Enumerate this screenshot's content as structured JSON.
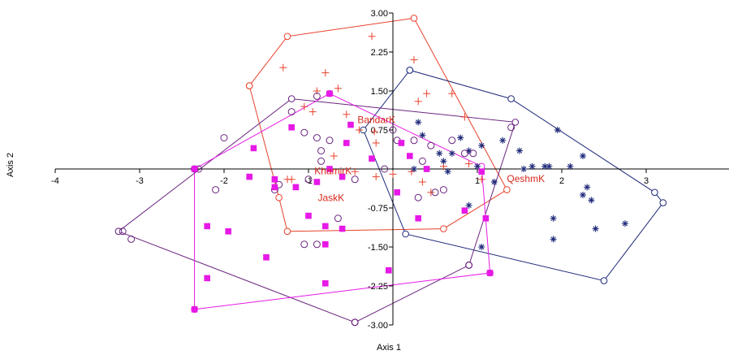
{
  "chart_data": {
    "type": "scatter",
    "xlabel": "Axis 1",
    "ylabel": "Axis 2",
    "xlim": [
      -4,
      3.3
    ],
    "ylim": [
      -3.0,
      3.0
    ],
    "x_ticks": [
      "-4",
      "-3",
      "-2",
      "-1",
      "1",
      "2",
      "3"
    ],
    "x_tick_values": [
      -4,
      -3,
      -2,
      -1,
      1,
      2,
      3
    ],
    "y_ticks": [
      "3.00",
      "2.25",
      "1.50",
      "0.75",
      "-0.75",
      "-1.50",
      "-2.25",
      "-3.00"
    ],
    "y_tick_values": [
      3.0,
      2.25,
      1.5,
      0.75,
      -0.75,
      -1.5,
      -2.25,
      -3.0
    ],
    "grid": false,
    "series": [
      {
        "name": "BandarK",
        "marker": "plus",
        "color": "#e8412c",
        "label_at": [
          -0.42,
          0.88
        ],
        "points": [
          [
            -1.3,
            1.95
          ],
          [
            -0.8,
            1.85
          ],
          [
            -0.65,
            1.55
          ],
          [
            -0.9,
            1.5
          ],
          [
            -1.05,
            1.2
          ],
          [
            -0.95,
            1.1
          ],
          [
            -0.55,
            1.05
          ],
          [
            -0.4,
            0.75
          ],
          [
            -0.22,
            0.72
          ],
          [
            -0.2,
            0.5
          ],
          [
            0.3,
            1.3
          ],
          [
            0.4,
            1.45
          ],
          [
            0.7,
            1.45
          ],
          [
            0.25,
            2.1
          ],
          [
            -0.25,
            2.55
          ],
          [
            -1.25,
            -0.2
          ],
          [
            -1.2,
            -0.2
          ],
          [
            -0.7,
            0.25
          ],
          [
            0.35,
            -0.25
          ],
          [
            0.45,
            -0.45
          ],
          [
            0.9,
            0.1
          ],
          [
            1.05,
            -0.2
          ],
          [
            0.6,
            0.05
          ],
          [
            -0.45,
            -0.05
          ],
          [
            0.0,
            -0.1
          ],
          [
            0.22,
            -0.05
          ],
          [
            0.85,
            1.0
          ],
          [
            -0.2,
            -0.15
          ]
        ],
        "hull": [
          [
            -1.7,
            1.6
          ],
          [
            -1.25,
            2.55
          ],
          [
            0.25,
            2.9
          ],
          [
            1.35,
            -0.4
          ],
          [
            0.6,
            -1.15
          ],
          [
            -1.25,
            -1.2
          ],
          [
            -1.35,
            -0.55
          ],
          [
            -1.7,
            1.6
          ]
        ]
      },
      {
        "name": "QeshmK",
        "marker": "asterisk",
        "color": "#1f2a7a",
        "label_at": [
          1.35,
          -0.25
        ],
        "points": [
          [
            0.25,
            0.0
          ],
          [
            0.3,
            0.9
          ],
          [
            0.55,
            0.3
          ],
          [
            0.6,
            0.15
          ],
          [
            0.7,
            0.3
          ],
          [
            0.8,
            0.6
          ],
          [
            0.9,
            0.35
          ],
          [
            1.0,
            0.05
          ],
          [
            1.05,
            0.45
          ],
          [
            1.3,
            0.55
          ],
          [
            1.5,
            0.35
          ],
          [
            1.65,
            0.05
          ],
          [
            1.8,
            0.05
          ],
          [
            1.85,
            0.05
          ],
          [
            1.95,
            0.75
          ],
          [
            2.1,
            0.05
          ],
          [
            2.25,
            0.25
          ],
          [
            2.3,
            -0.35
          ],
          [
            2.25,
            -0.5
          ],
          [
            2.35,
            -0.6
          ],
          [
            2.75,
            -1.05
          ],
          [
            2.4,
            -1.15
          ],
          [
            1.9,
            -0.95
          ],
          [
            1.9,
            -1.35
          ],
          [
            0.9,
            -0.7
          ],
          [
            1.05,
            -1.5
          ],
          [
            1.55,
            0.0
          ],
          [
            0.35,
            0.65
          ],
          [
            0.65,
            -0.05
          ],
          [
            1.2,
            -0.25
          ]
        ],
        "hull": [
          [
            0.2,
            1.9
          ],
          [
            1.4,
            1.35
          ],
          [
            3.1,
            -0.45
          ],
          [
            3.2,
            -0.65
          ],
          [
            2.5,
            -2.15
          ],
          [
            0.15,
            -1.25
          ],
          [
            -0.35,
            0.75
          ],
          [
            0.2,
            1.9
          ]
        ]
      },
      {
        "name": "KhamirK",
        "marker": "circle",
        "color": "#6a2580",
        "label_at": [
          -0.93,
          -0.1
        ],
        "points": [
          [
            -2.0,
            0.6
          ],
          [
            -2.3,
            0.0
          ],
          [
            -2.35,
            0.0
          ],
          [
            -1.2,
            1.1
          ],
          [
            -1.05,
            0.7
          ],
          [
            -0.9,
            0.6
          ],
          [
            -0.85,
            0.35
          ],
          [
            -0.85,
            0.15
          ],
          [
            -0.75,
            0.55
          ],
          [
            -0.65,
            -0.95
          ],
          [
            -1.05,
            -1.45
          ],
          [
            -1.35,
            -0.3
          ],
          [
            -1.4,
            -0.4
          ],
          [
            -2.1,
            -0.4
          ],
          [
            -0.45,
            -0.2
          ],
          [
            -0.9,
            1.4
          ],
          [
            0.0,
            0.75
          ],
          [
            0.05,
            0.55
          ],
          [
            0.25,
            0.55
          ],
          [
            0.45,
            0.45
          ],
          [
            0.5,
            -0.45
          ],
          [
            0.3,
            -0.55
          ],
          [
            0.95,
            0.3
          ],
          [
            1.4,
            0.8
          ],
          [
            0.7,
            0.55
          ],
          [
            0.85,
            0.3
          ],
          [
            -0.9,
            -1.45
          ],
          [
            -3.2,
            -1.2
          ],
          [
            -3.1,
            -1.35
          ],
          [
            -0.45,
            -2.95
          ],
          [
            0.9,
            -1.85
          ],
          [
            -0.1,
            0.0
          ],
          [
            0.6,
            -0.4
          ],
          [
            0.35,
            0.15
          ],
          [
            -1.0,
            -0.2
          ]
        ],
        "hull": [
          [
            -3.25,
            -1.2
          ],
          [
            -1.2,
            1.35
          ],
          [
            1.45,
            0.9
          ],
          [
            0.9,
            -1.85
          ],
          [
            -0.45,
            -2.95
          ],
          [
            -3.25,
            -1.2
          ]
        ]
      },
      {
        "name": "JaskK",
        "marker": "square",
        "color": "#e619e6",
        "label_at": [
          -0.89,
          -0.62
        ],
        "points": [
          [
            -2.35,
            0.0
          ],
          [
            -1.65,
            0.4
          ],
          [
            -1.7,
            -0.15
          ],
          [
            -1.4,
            -0.2
          ],
          [
            -1.2,
            0.8
          ],
          [
            -0.75,
            1.45
          ],
          [
            -0.5,
            0.85
          ],
          [
            -0.75,
            0.0
          ],
          [
            -0.6,
            -0.15
          ],
          [
            -0.9,
            -0.25
          ],
          [
            -1.15,
            -0.35
          ],
          [
            -1.0,
            -0.9
          ],
          [
            -0.8,
            -1.1
          ],
          [
            -0.6,
            -1.15
          ],
          [
            0.1,
            0.5
          ],
          [
            0.2,
            0.25
          ],
          [
            0.4,
            0.0
          ],
          [
            0.05,
            -0.45
          ],
          [
            0.3,
            -0.95
          ],
          [
            1.05,
            -0.05
          ],
          [
            1.1,
            -0.95
          ],
          [
            1.15,
            -2.0
          ],
          [
            -1.5,
            -1.7
          ],
          [
            -2.2,
            -2.1
          ],
          [
            -1.95,
            -1.2
          ],
          [
            -2.2,
            -1.1
          ],
          [
            -0.8,
            -2.2
          ],
          [
            -0.05,
            -1.95
          ],
          [
            -0.8,
            -1.45
          ],
          [
            -0.55,
            0.5
          ],
          [
            -0.25,
            0.2
          ],
          [
            0.85,
            -0.8
          ],
          [
            -2.35,
            -2.7
          ],
          [
            -1.4,
            -0.35
          ]
        ],
        "hull": [
          [
            -2.35,
            0.0
          ],
          [
            -0.75,
            1.45
          ],
          [
            1.05,
            0.05
          ],
          [
            1.15,
            -2.0
          ],
          [
            -2.35,
            -2.7
          ],
          [
            -2.35,
            0.0
          ]
        ]
      }
    ]
  }
}
